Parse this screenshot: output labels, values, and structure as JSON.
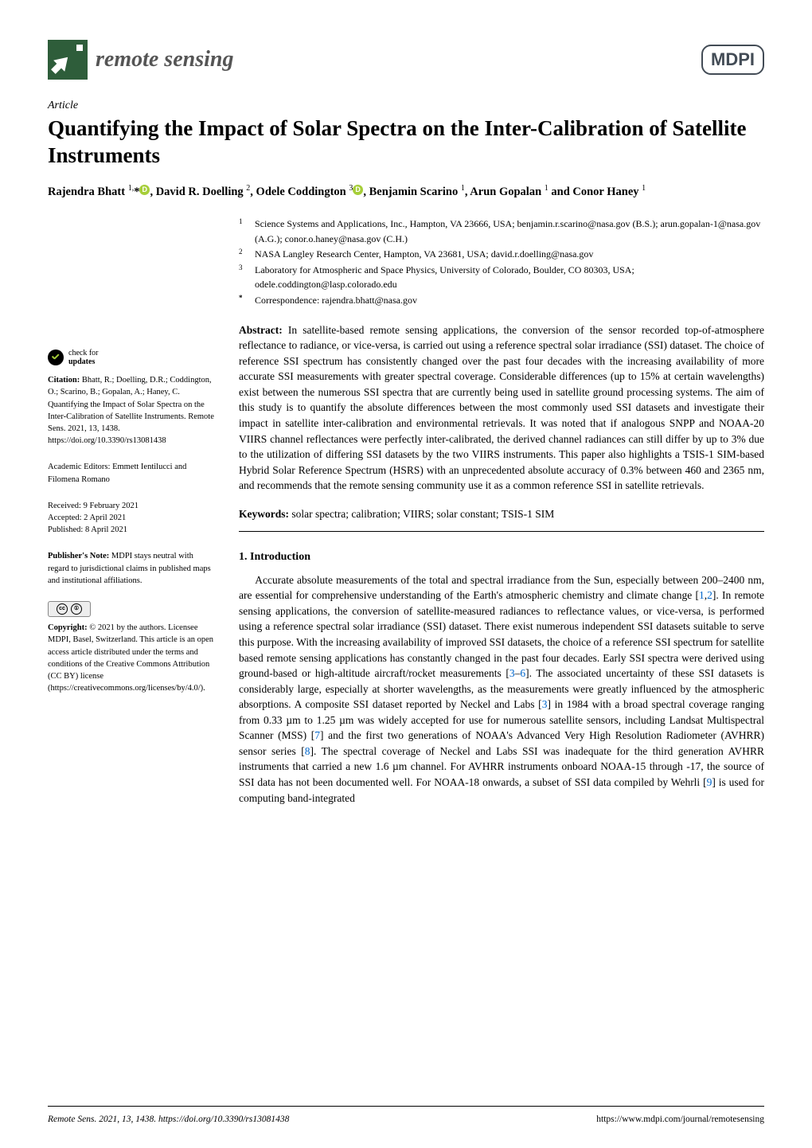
{
  "journal": {
    "name": "remote sensing",
    "publisher": "MDPI"
  },
  "article": {
    "type": "Article",
    "title": "Quantifying the Impact of Solar Spectra on the Inter-Calibration of Satellite Instruments",
    "authors_html": "Rajendra Bhatt <sup>1,</sup>* , David R. Doelling <sup>2</sup>, Odele Coddington <sup>3</sup> , Benjamin Scarino <sup>1</sup>, Arun Gopalan <sup>1</sup> and Conor Haney <sup>1</sup>"
  },
  "affiliations": [
    {
      "num": "1",
      "text": "Science Systems and Applications, Inc., Hampton, VA 23666, USA; benjamin.r.scarino@nasa.gov (B.S.); arun.gopalan-1@nasa.gov (A.G.); conor.o.haney@nasa.gov (C.H.)"
    },
    {
      "num": "2",
      "text": "NASA Langley Research Center, Hampton, VA 23681, USA; david.r.doelling@nasa.gov"
    },
    {
      "num": "3",
      "text": "Laboratory for Atmospheric and Space Physics, University of Colorado, Boulder, CO 80303, USA; odele.coddington@lasp.colorado.edu"
    },
    {
      "num": "*",
      "text": "Correspondence: rajendra.bhatt@nasa.gov"
    }
  ],
  "abstract": {
    "label": "Abstract:",
    "text": "In satellite-based remote sensing applications, the conversion of the sensor recorded top-of-atmosphere reflectance to radiance, or vice-versa, is carried out using a reference spectral solar irradiance (SSI) dataset. The choice of reference SSI spectrum has consistently changed over the past four decades with the increasing availability of more accurate SSI measurements with greater spectral coverage. Considerable differences (up to 15% at certain wavelengths) exist between the numerous SSI spectra that are currently being used in satellite ground processing systems. The aim of this study is to quantify the absolute differences between the most commonly used SSI datasets and investigate their impact in satellite inter-calibration and environmental retrievals. It was noted that if analogous SNPP and NOAA-20 VIIRS channel reflectances were perfectly inter-calibrated, the derived channel radiances can still differ by up to 3% due to the utilization of differing SSI datasets by the two VIIRS instruments. This paper also highlights a TSIS-1 SIM-based Hybrid Solar Reference Spectrum (HSRS) with an unprecedented absolute accuracy of 0.3% between 460 and 2365 nm, and recommends that the remote sensing community use it as a common reference SSI in satellite retrievals."
  },
  "keywords": {
    "label": "Keywords:",
    "text": "solar spectra; calibration; VIIRS; solar constant; TSIS-1 SIM"
  },
  "section1": {
    "heading": "1. Introduction",
    "body": "Accurate absolute measurements of the total and spectral irradiance from the Sun, especially between 200–2400 nm, are essential for comprehensive understanding of the Earth's atmospheric chemistry and climate change [1,2]. In remote sensing applications, the conversion of satellite-measured radiances to reflectance values, or vice-versa, is performed using a reference spectral solar irradiance (SSI) dataset. There exist numerous independent SSI datasets suitable to serve this purpose. With the increasing availability of improved SSI datasets, the choice of a reference SSI spectrum for satellite based remote sensing applications has constantly changed in the past four decades. Early SSI spectra were derived using ground-based or high-altitude aircraft/rocket measurements [3–6]. The associated uncertainty of these SSI datasets is considerably large, especially at shorter wavelengths, as the measurements were greatly influenced by the atmospheric absorptions. A composite SSI dataset reported by Neckel and Labs [3] in 1984 with a broad spectral coverage ranging from 0.33 µm to 1.25 µm was widely accepted for use for numerous satellite sensors, including Landsat Multispectral Scanner (MSS) [7] and the first two generations of NOAA's Advanced Very High Resolution Radiometer (AVHRR) sensor series [8]. The spectral coverage of Neckel and Labs SSI was inadequate for the third generation AVHRR instruments that carried a new 1.6 µm channel. For AVHRR instruments onboard NOAA-15 through -17, the source of SSI data has not been documented well. For NOAA-18 onwards, a subset of SSI data compiled by Wehrli [9] is used for computing band-integrated"
  },
  "sidebar": {
    "check_updates_line1": "check for",
    "check_updates_line2": "updates",
    "citation_label": "Citation:",
    "citation": "Bhatt, R.; Doelling, D.R.; Coddington, O.; Scarino, B.; Gopalan, A.; Haney, C. Quantifying the Impact of Solar Spectra on the Inter-Calibration of Satellite Instruments. Remote Sens. 2021, 13, 1438. https://doi.org/10.3390/rs13081438",
    "editors_label": "Academic Editors:",
    "editors": "Emmett Ientilucci and Filomena Romano",
    "received": "Received: 9 February 2021",
    "accepted": "Accepted: 2 April 2021",
    "published": "Published: 8 April 2021",
    "pubnote_label": "Publisher's Note:",
    "pubnote": "MDPI stays neutral with regard to jurisdictional claims in published maps and institutional affiliations.",
    "copyright_label": "Copyright:",
    "copyright": "© 2021 by the authors. Licensee MDPI, Basel, Switzerland. This article is an open access article distributed under the terms and conditions of the Creative Commons Attribution (CC BY) license (https://creativecommons.org/licenses/by/4.0/)."
  },
  "footer": {
    "left": "Remote Sens. 2021, 13, 1438. https://doi.org/10.3390/rs13081438",
    "right": "https://www.mdpi.com/journal/remotesensing"
  },
  "colors": {
    "journal_icon_bg": "#2e5d3a",
    "publisher_border": "#434c56",
    "orcid": "#a6ce39",
    "citation_link": "#0066cc"
  }
}
